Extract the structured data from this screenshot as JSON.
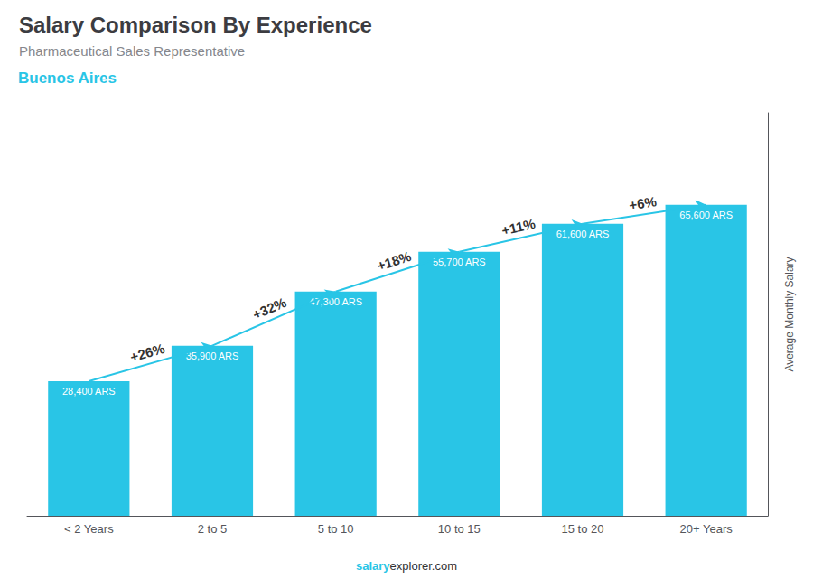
{
  "chart_data": {
    "type": "bar",
    "title": "Salary Comparison By Experience",
    "subtitle": "Pharmaceutical Sales Representative",
    "ylabel": "Average Monthly Salary",
    "categories": [
      "< 2 Years",
      "2 to 5",
      "5 to 10",
      "10 to 15",
      "15 to 20",
      "20+ Years"
    ],
    "values": [
      28400,
      35900,
      47300,
      55700,
      61600,
      65600
    ],
    "value_labels": [
      "28,400 ARS",
      "35,900 ARS",
      "47,300 ARS",
      "55,700 ARS",
      "61,600 ARS",
      "65,600 ARS"
    ],
    "data_labels": true,
    "color": "#29C5E6",
    "ylim": [
      0,
      85000
    ],
    "grid": false,
    "tick_labels": "x",
    "annotations": [
      {
        "text": "Buenos Aires"
      },
      {
        "text": "+26%",
        "from": "< 2 Years",
        "to": "2 to 5"
      },
      {
        "text": "+32%",
        "from": "2 to 5",
        "to": "5 to 10"
      },
      {
        "text": "+18%",
        "from": "5 to 10",
        "to": "10 to 15"
      },
      {
        "text": "+11%",
        "from": "10 to 15",
        "to": "15 to 20"
      },
      {
        "text": "+6%",
        "from": "15 to 20",
        "to": "20+ Years"
      }
    ],
    "watermark": [
      "salary",
      "explorer.com"
    ]
  }
}
